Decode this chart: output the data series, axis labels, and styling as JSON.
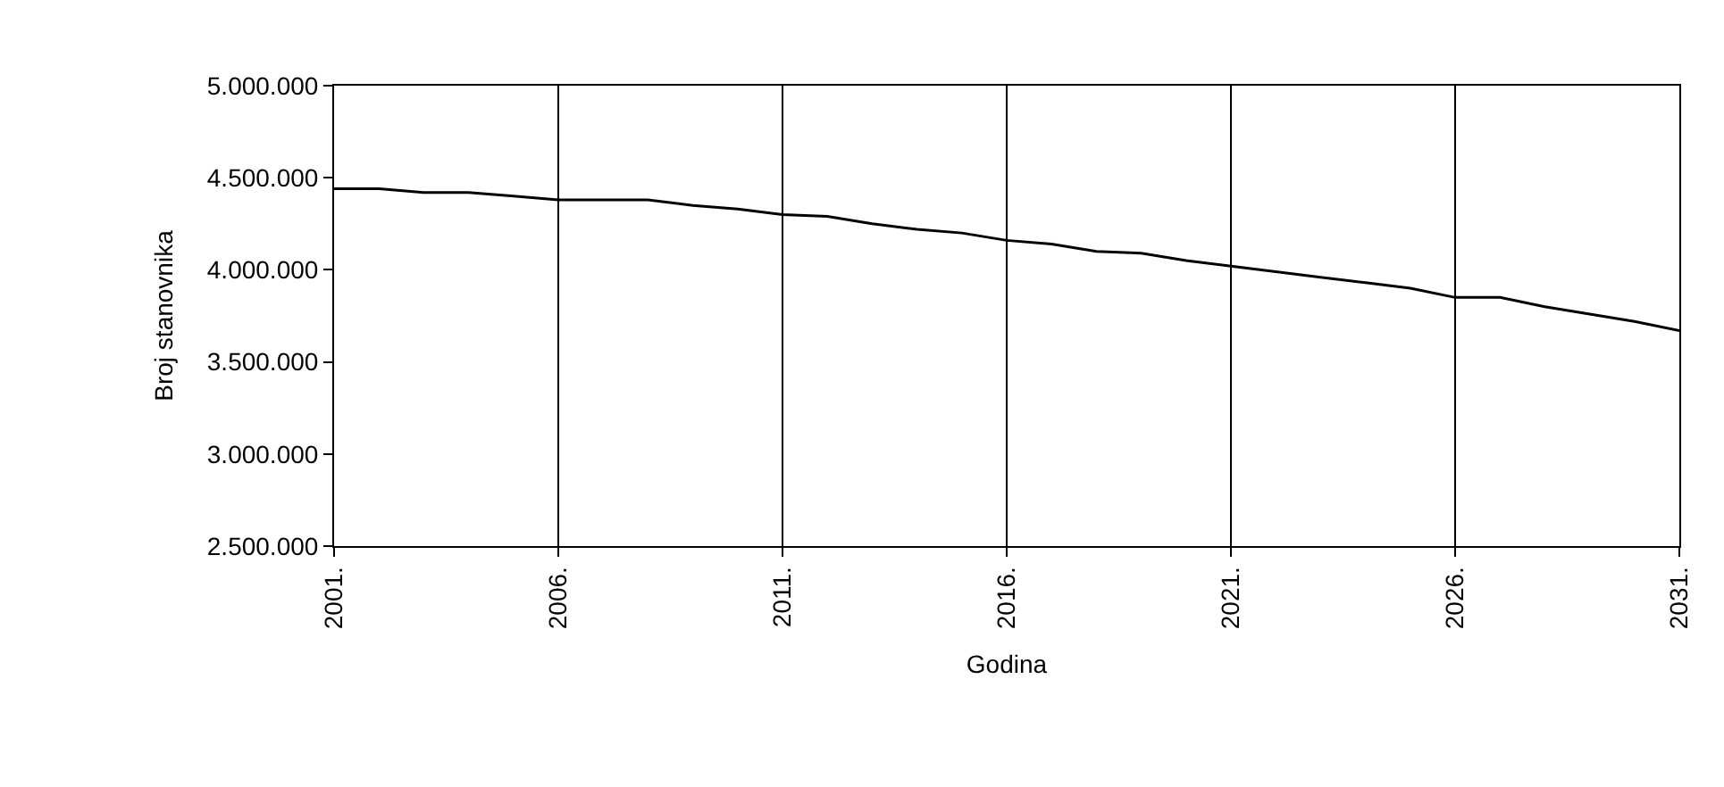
{
  "chart_data": {
    "type": "line",
    "xlabel": "Godina",
    "ylabel": "Broj stanovnika",
    "x": [
      2001,
      2002,
      2003,
      2004,
      2005,
      2006,
      2007,
      2008,
      2009,
      2010,
      2011,
      2012,
      2013,
      2014,
      2015,
      2016,
      2017,
      2018,
      2019,
      2020,
      2021,
      2022,
      2023,
      2024,
      2025,
      2026,
      2027,
      2028,
      2029,
      2030,
      2031
    ],
    "series": [
      {
        "color": "#000000",
        "values": [
          4440000,
          4440000,
          4420000,
          4420000,
          4400000,
          4380000,
          4380000,
          4380000,
          4350000,
          4330000,
          4300000,
          4290000,
          4250000,
          4220000,
          4200000,
          4160000,
          4140000,
          4100000,
          4090000,
          4050000,
          4020000,
          3990000,
          3960000,
          3930000,
          3900000,
          3850000,
          3850000,
          3800000,
          3760000,
          3720000,
          3670000
        ]
      }
    ],
    "xlim": [
      2001,
      2031
    ],
    "xticks": [
      {
        "value": 2001,
        "label": "2001."
      },
      {
        "value": 2006,
        "label": "2006."
      },
      {
        "value": 2011,
        "label": "2011."
      },
      {
        "value": 2016,
        "label": "2016."
      },
      {
        "value": 2021,
        "label": "2021."
      },
      {
        "value": 2026,
        "label": "2026."
      },
      {
        "value": 2031,
        "label": "2031."
      }
    ],
    "ylim": [
      2500000,
      5000000
    ],
    "yticks": [
      {
        "value": 2500000,
        "label": "2.500.000"
      },
      {
        "value": 3000000,
        "label": "3.000.000"
      },
      {
        "value": 3500000,
        "label": "3.500.000"
      },
      {
        "value": 4000000,
        "label": "4.000.000"
      },
      {
        "value": 4500000,
        "label": "4.500.000"
      },
      {
        "value": 5000000,
        "label": "5.000.000"
      }
    ],
    "grid": "x",
    "marker": "none",
    "line_style": "solid"
  }
}
